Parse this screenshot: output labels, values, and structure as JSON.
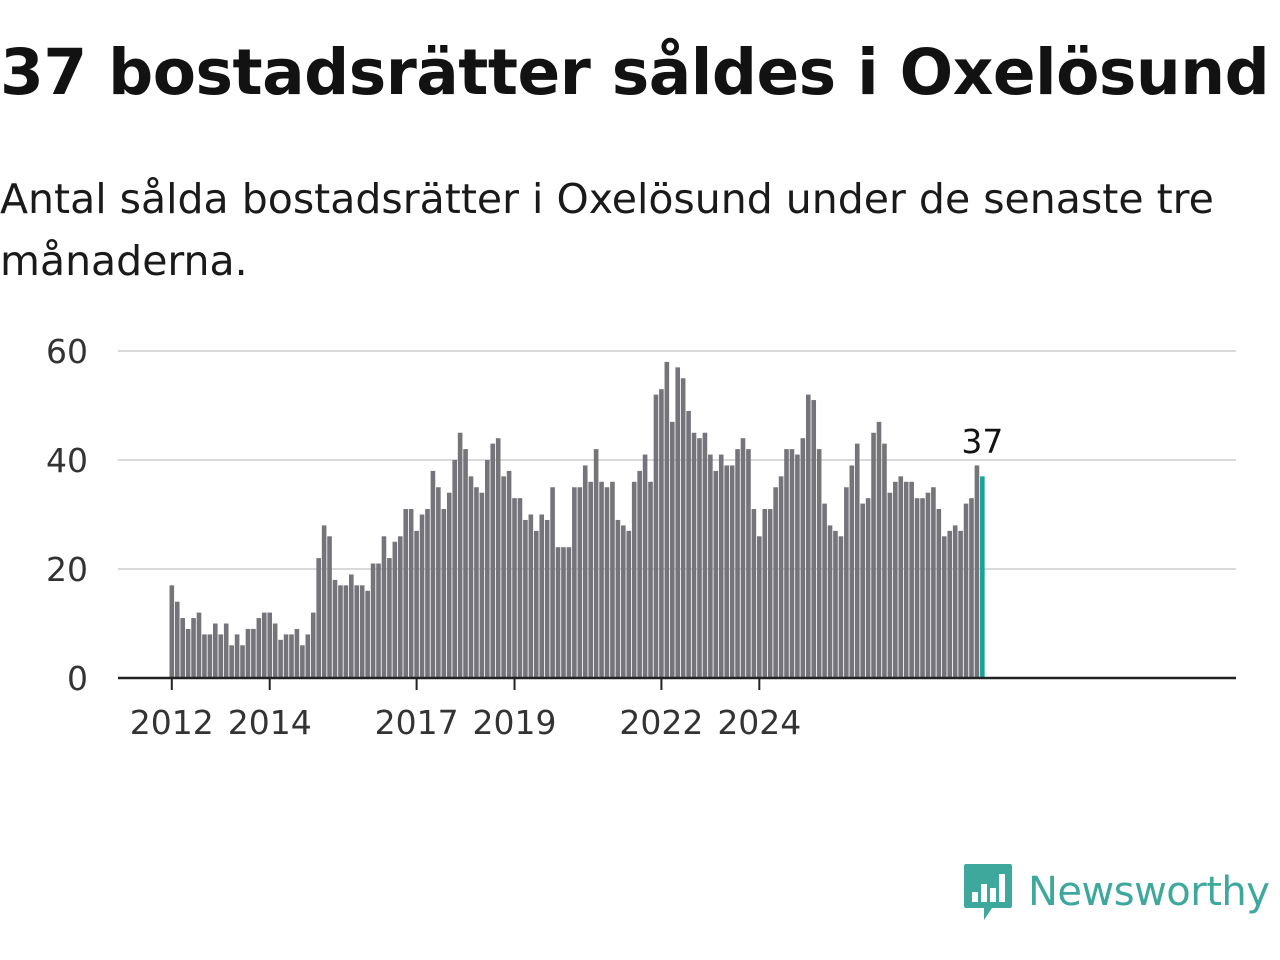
{
  "header": {
    "title": "37 bostadsrätter såldes i Oxelösund",
    "subtitle": "Antal sålda bostadsrätter i Oxelösund under de senaste tre månaderna."
  },
  "brand": {
    "name": "Newsworthy",
    "icon": "newsworthy-logo-icon",
    "color": "#3fa89c"
  },
  "colors": {
    "bar": "#75747a",
    "highlight": "#17a398",
    "grid": "#d9d9d9",
    "axis": "#222222"
  },
  "chart_data": {
    "type": "bar",
    "title": "",
    "xlabel": "",
    "ylabel": "",
    "ylim": [
      0,
      60
    ],
    "yticks": [
      0,
      20,
      40,
      60
    ],
    "xticks": [
      {
        "label": "2012",
        "index": 0
      },
      {
        "label": "2014",
        "index": 18
      },
      {
        "label": "2017",
        "index": 45
      },
      {
        "label": "2019",
        "index": 63
      },
      {
        "label": "2022",
        "index": 90
      },
      {
        "label": "2024",
        "index": 108
      }
    ],
    "grid": true,
    "highlight_last": true,
    "last_value_label": "37",
    "values": [
      17,
      14,
      11,
      9,
      11,
      12,
      8,
      8,
      10,
      8,
      10,
      6,
      8,
      6,
      9,
      9,
      11,
      12,
      12,
      10,
      7,
      8,
      8,
      9,
      6,
      8,
      12,
      22,
      28,
      26,
      18,
      17,
      17,
      19,
      17,
      17,
      16,
      21,
      21,
      26,
      22,
      25,
      26,
      31,
      31,
      27,
      30,
      31,
      38,
      35,
      31,
      34,
      40,
      45,
      42,
      37,
      35,
      34,
      40,
      43,
      44,
      37,
      38,
      33,
      33,
      29,
      30,
      27,
      30,
      29,
      35,
      24,
      24,
      24,
      35,
      35,
      39,
      36,
      42,
      36,
      35,
      36,
      29,
      28,
      27,
      36,
      38,
      41,
      36,
      52,
      53,
      58,
      47,
      57,
      55,
      49,
      45,
      44,
      45,
      41,
      38,
      41,
      39,
      39,
      42,
      44,
      42,
      31,
      26,
      31,
      31,
      35,
      37,
      42,
      42,
      41,
      44,
      52,
      51,
      42,
      32,
      28,
      27,
      26,
      35,
      39,
      43,
      32,
      33,
      45,
      47,
      43,
      34,
      36,
      37,
      36,
      36,
      33,
      33,
      34,
      35,
      31,
      26,
      27,
      28,
      27,
      32,
      33,
      39,
      37
    ]
  }
}
